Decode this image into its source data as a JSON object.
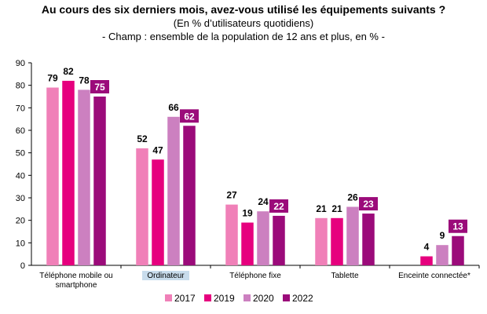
{
  "chart_data": {
    "type": "bar",
    "title": "Au cours des six derniers mois, avez-vous utilisé les équipements suivants ?",
    "subtitle": "(En % d’utilisateurs quotidiens)",
    "subtitle2": "- Champ : ensemble de la population de 12 ans et plus, en % -",
    "categories": [
      "Téléphone mobile ou smartphone",
      "Ordinateur",
      "Téléphone fixe",
      "Tablette",
      "Enceinte connectée*"
    ],
    "category_lines": [
      [
        "Téléphone mobile ou",
        "smartphone"
      ],
      [
        "Ordinateur"
      ],
      [
        "Téléphone fixe"
      ],
      [
        "Tablette"
      ],
      [
        "Enceinte connectée*"
      ]
    ],
    "series": [
      {
        "name": "2017",
        "color": "#f080b8",
        "values": [
          79,
          52,
          27,
          21,
          null
        ]
      },
      {
        "name": "2019",
        "color": "#e6007e",
        "values": [
          82,
          47,
          19,
          21,
          4
        ]
      },
      {
        "name": "2020",
        "color": "#cc80c0",
        "values": [
          78,
          66,
          24,
          26,
          9
        ]
      },
      {
        "name": "2022",
        "color": "#9b0b7a",
        "values": [
          75,
          62,
          22,
          23,
          13
        ]
      }
    ],
    "ylim": [
      0,
      90
    ],
    "yticks": [
      0,
      10,
      20,
      30,
      40,
      50,
      60,
      70,
      80,
      90
    ],
    "grid": false,
    "legend_position": "bottom",
    "highlighted_category": "Ordinateur"
  }
}
